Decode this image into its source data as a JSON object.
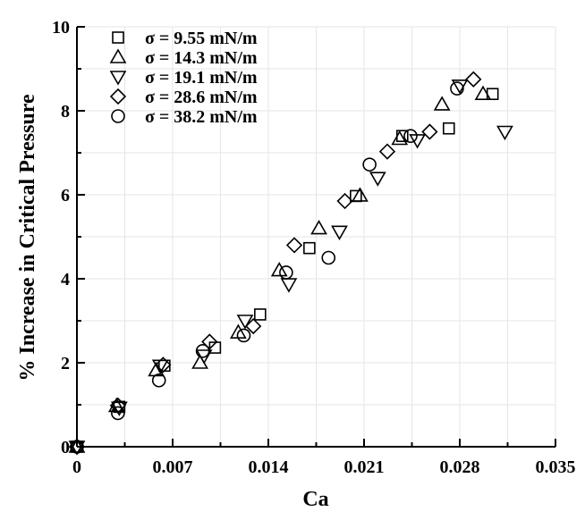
{
  "chart_data": {
    "type": "scatter",
    "xlabel": "Ca",
    "ylabel": "% Increase in Critical Pressure",
    "xlim": [
      0,
      0.035
    ],
    "ylim": [
      0,
      10
    ],
    "x_ticks": [
      "0",
      "0.007",
      "0.014",
      "0.021",
      "0.028",
      "0.035"
    ],
    "x_tick_values": [
      0,
      0.007,
      0.014,
      0.021,
      0.028,
      0.035
    ],
    "y_ticks": [
      "0",
      "2",
      "4",
      "6",
      "8",
      "10"
    ],
    "y_tick_values": [
      0,
      2,
      4,
      6,
      8,
      10
    ],
    "grid": true,
    "legend_position": "top-left",
    "series": [
      {
        "name": "σ = 9.55 mN/m",
        "marker": "square",
        "points": [
          [
            0,
            0
          ],
          [
            0.0031,
            0.95
          ],
          [
            0.0064,
            1.93
          ],
          [
            0.0101,
            2.36
          ],
          [
            0.0134,
            3.15
          ],
          [
            0.017,
            4.73
          ],
          [
            0.0204,
            5.97
          ],
          [
            0.0238,
            7.4
          ],
          [
            0.0272,
            7.58
          ],
          [
            0.0304,
            8.4
          ]
        ]
      },
      {
        "name": "σ = 14.3 mN/m",
        "marker": "triangle-up",
        "points": [
          [
            0,
            0
          ],
          [
            0.0029,
            0.97
          ],
          [
            0.0058,
            1.82
          ],
          [
            0.009,
            2.0
          ],
          [
            0.0118,
            2.72
          ],
          [
            0.0148,
            4.2
          ],
          [
            0.0177,
            5.2
          ],
          [
            0.0207,
            5.98
          ],
          [
            0.0236,
            7.33
          ],
          [
            0.0267,
            8.15
          ],
          [
            0.0297,
            8.4
          ]
        ]
      },
      {
        "name": "σ = 19.1 mN/m",
        "marker": "triangle-down",
        "points": [
          [
            0,
            0
          ],
          [
            0.0031,
            0.93
          ],
          [
            0.0061,
            1.93
          ],
          [
            0.0093,
            2.17
          ],
          [
            0.0123,
            3.0
          ],
          [
            0.0155,
            3.87
          ],
          [
            0.0192,
            5.12
          ],
          [
            0.022,
            6.4
          ],
          [
            0.0249,
            7.3
          ],
          [
            0.028,
            8.6
          ],
          [
            0.0313,
            7.5
          ]
        ]
      },
      {
        "name": "σ = 28.6 mN/m",
        "marker": "diamond",
        "points": [
          [
            0,
            0
          ],
          [
            0.003,
            0.98
          ],
          [
            0.0063,
            1.95
          ],
          [
            0.0097,
            2.5
          ],
          [
            0.0129,
            2.87
          ],
          [
            0.0159,
            4.8
          ],
          [
            0.0196,
            5.85
          ],
          [
            0.0227,
            7.03
          ],
          [
            0.0258,
            7.5
          ],
          [
            0.029,
            8.75
          ]
        ]
      },
      {
        "name": "σ = 38.2 mN/m",
        "marker": "circle",
        "points": [
          [
            0,
            0
          ],
          [
            0.003,
            0.8
          ],
          [
            0.006,
            1.58
          ],
          [
            0.0092,
            2.28
          ],
          [
            0.0122,
            2.65
          ],
          [
            0.0153,
            4.15
          ],
          [
            0.0184,
            4.5
          ],
          [
            0.0214,
            6.72
          ],
          [
            0.0244,
            7.4
          ],
          [
            0.0278,
            8.53
          ]
        ]
      }
    ]
  }
}
